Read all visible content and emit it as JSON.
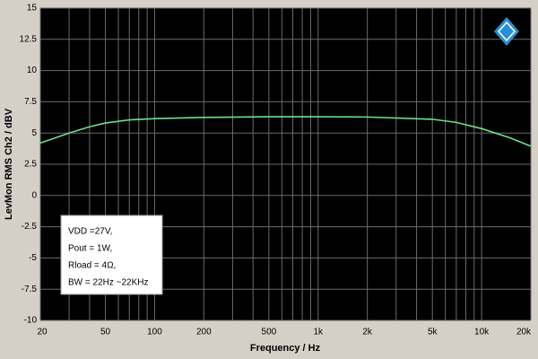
{
  "chart_data": {
    "type": "line",
    "x_scale": "log",
    "xlabel": "Frequency / Hz",
    "ylabel": "LevMon RMS Ch2 / dBV",
    "x": [
      20,
      30,
      40,
      50,
      70,
      100,
      200,
      500,
      1000,
      2000,
      5000,
      7000,
      10000,
      15000,
      20000
    ],
    "series": [
      {
        "name": "Ch2",
        "color": "#6ee08a",
        "values": [
          4.2,
          5.0,
          5.5,
          5.8,
          6.05,
          6.15,
          6.25,
          6.3,
          6.3,
          6.28,
          6.1,
          5.85,
          5.35,
          4.6,
          3.95
        ]
      }
    ],
    "xlim": [
      20,
      20000
    ],
    "ylim": [
      -10,
      15
    ],
    "xticks": [
      20,
      50,
      100,
      200,
      500,
      {
        "value": 1000,
        "label": "1k"
      },
      {
        "value": 2000,
        "label": "2k"
      },
      {
        "value": 5000,
        "label": "5k"
      },
      {
        "value": 10000,
        "label": "10k"
      },
      {
        "value": 20000,
        "label": "20k"
      }
    ],
    "x_minor_ticks": [
      30,
      40,
      60,
      70,
      80,
      90,
      300,
      400,
      600,
      700,
      800,
      900,
      3000,
      4000,
      6000,
      7000,
      8000,
      9000
    ],
    "yticks": [
      15,
      12.5,
      10,
      7.5,
      5,
      2.5,
      0,
      -2.5,
      -5,
      -7.5,
      -10
    ],
    "grid": true,
    "annotation": [
      "VDD =27V,",
      "Pout = 1W,",
      "Rload = 4Ω,",
      "BW = 22Hz ~22KHz"
    ]
  }
}
